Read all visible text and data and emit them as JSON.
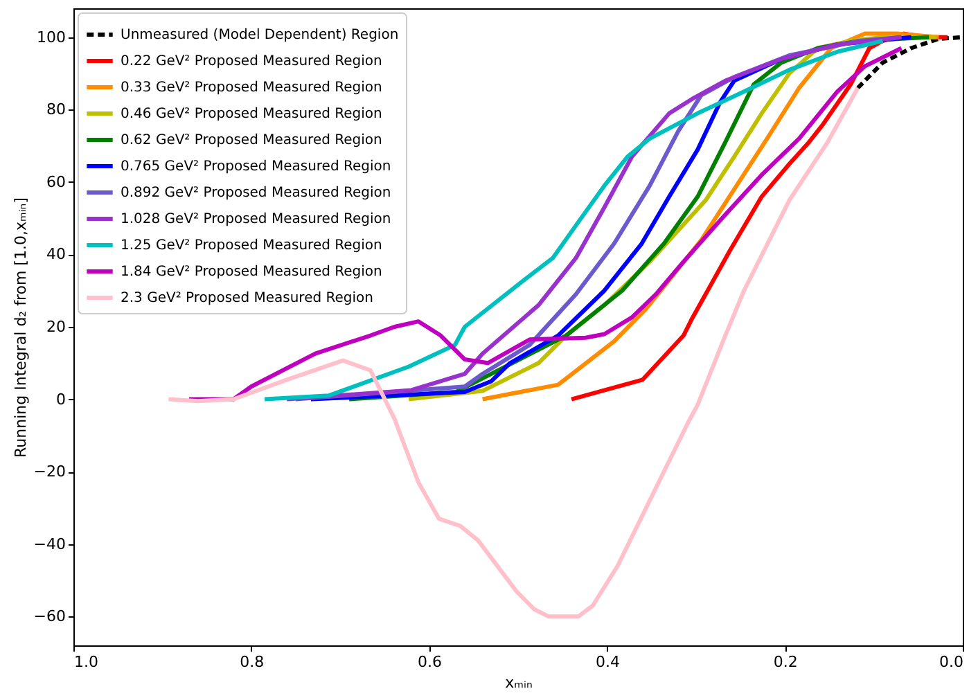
{
  "chart_data": {
    "type": "line",
    "xlabel": "xₘᵢₙ",
    "ylabel": "Running Integral d₂ from [1.0,xₘᵢₙ]",
    "xlim": [
      1.0,
      0.0
    ],
    "xticks": [
      {
        "value": 1,
        "label": "1.0"
      },
      0.8,
      0.6,
      0.4,
      0.2,
      {
        "value": 0,
        "label": "0.0"
      }
    ],
    "ylim": [
      -68,
      108
    ],
    "yticks": [
      -60,
      -40,
      -20,
      0,
      20,
      40,
      60,
      80,
      100
    ],
    "grid": false,
    "legend": "top left",
    "marker": "none",
    "series": [
      {
        "name": "Unmeasured (Model Dependent) Region",
        "color": "#000000",
        "line_style": "dashed",
        "x": [
          0.118,
          0.09,
          0.058,
          0.027,
          0.0
        ],
        "values": [
          86,
          93,
          97,
          99.6,
          100
        ]
      },
      {
        "name": "0.22 GeV² Proposed Measured Region",
        "color": "#ff0000",
        "x": [
          0.44,
          0.36,
          0.314,
          0.305,
          0.262,
          0.226,
          0.195,
          0.173,
          0.157,
          0.126,
          0.105,
          0.09,
          0.066,
          0.04,
          0.017
        ],
        "values": [
          0,
          5.4,
          17.6,
          22,
          41,
          56,
          65,
          71,
          76,
          87,
          97,
          99,
          101,
          100,
          100
        ]
      },
      {
        "name": "0.33 GeV² Proposed Measured Region",
        "color": "#ff8c00",
        "x": [
          0.54,
          0.455,
          0.392,
          0.356,
          0.294,
          0.257,
          0.22,
          0.184,
          0.148,
          0.11,
          0.074,
          0.027
        ],
        "values": [
          0,
          4,
          16,
          25,
          44,
          58,
          72,
          86,
          97,
          101,
          101,
          100
        ]
      },
      {
        "name": "0.46 GeV² Proposed Measured Region",
        "color": "#bfbf00",
        "x": [
          0.623,
          0.54,
          0.477,
          0.446,
          0.403,
          0.352,
          0.289,
          0.257,
          0.226,
          0.195,
          0.163,
          0.126,
          0.09,
          0.03
        ],
        "values": [
          0,
          2.3,
          10,
          17.6,
          26,
          38,
          55,
          67,
          79,
          90,
          97,
          99,
          100,
          100
        ]
      },
      {
        "name": "0.62 GeV² Proposed Measured Region",
        "color": "#008000",
        "x": [
          0.69,
          0.57,
          0.446,
          0.383,
          0.336,
          0.298,
          0.267,
          0.235,
          0.204,
          0.163,
          0.116,
          0.038
        ],
        "values": [
          0,
          2,
          17.6,
          30,
          43,
          56,
          71,
          87,
          93,
          97,
          99,
          100
        ]
      },
      {
        "name": "0.765 GeV² Proposed Measured Region",
        "color": "#0000ff",
        "x": [
          0.733,
          0.56,
          0.53,
          0.509,
          0.455,
          0.403,
          0.361,
          0.33,
          0.298,
          0.273,
          0.257,
          0.204,
          0.141,
          0.058
        ],
        "values": [
          0,
          2,
          5,
          10,
          17.6,
          30,
          43,
          56,
          69,
          82,
          88,
          94,
          98,
          100
        ]
      },
      {
        "name": "0.892 GeV² Proposed Measured Region",
        "color": "#6a5acd",
        "x": [
          0.75,
          0.56,
          0.54,
          0.487,
          0.435,
          0.392,
          0.352,
          0.32,
          0.294,
          0.257,
          0.195,
          0.116,
          0.069
        ],
        "values": [
          0,
          3.5,
          7,
          15,
          29,
          43,
          59,
          74,
          84,
          89,
          95,
          99,
          100
        ]
      },
      {
        "name": "1.028 GeV² Proposed Measured Region",
        "color": "#9932cc",
        "x": [
          0.76,
          0.62,
          0.56,
          0.54,
          0.477,
          0.435,
          0.403,
          0.372,
          0.33,
          0.304,
          0.267,
          0.204,
          0.141,
          0.069
        ],
        "values": [
          0,
          2.5,
          7,
          12.6,
          26,
          39,
          53,
          67,
          79,
          83,
          88,
          94,
          98,
          100
        ]
      },
      {
        "name": "1.25 GeV² Proposed Measured Region",
        "color": "#00bfbf",
        "x": [
          0.785,
          0.713,
          0.623,
          0.571,
          0.56,
          0.493,
          0.461,
          0.435,
          0.403,
          0.377,
          0.352,
          0.298,
          0.246,
          0.195,
          0.141,
          0.09
        ],
        "values": [
          0,
          1,
          9,
          15,
          20,
          33,
          39,
          48,
          59,
          67,
          72,
          79,
          85,
          91,
          96,
          99
        ]
      },
      {
        "name": "1.84 GeV² Proposed Measured Region",
        "color": "#bf00bf",
        "x": [
          0.87,
          0.82,
          0.8,
          0.728,
          0.666,
          0.639,
          0.612,
          0.587,
          0.56,
          0.534,
          0.487,
          0.424,
          0.403,
          0.372,
          0.345,
          0.314,
          0.267,
          0.226,
          0.184,
          0.141,
          0.11,
          0.069
        ],
        "values": [
          0,
          0,
          3.5,
          12.6,
          17.6,
          20,
          21.5,
          17.6,
          11,
          10,
          16.5,
          17,
          18,
          22.6,
          29,
          38,
          51,
          62,
          72,
          85,
          92,
          97
        ]
      },
      {
        "name": "2.3 GeV² Proposed Measured Region",
        "color": "#ffc0cb",
        "x": [
          0.893,
          0.86,
          0.82,
          0.76,
          0.697,
          0.666,
          0.639,
          0.612,
          0.589,
          0.565,
          0.545,
          0.502,
          0.482,
          0.466,
          0.432,
          0.416,
          0.388,
          0.352,
          0.309,
          0.298,
          0.267,
          0.246,
          0.195,
          0.152,
          0.118
        ],
        "values": [
          0,
          -0.5,
          0,
          5.4,
          10.7,
          8,
          -5.4,
          -23,
          -33,
          -35,
          -39,
          -53,
          -58,
          -60,
          -60,
          -57,
          -46,
          -28,
          -6.5,
          -1.5,
          17.6,
          30,
          55,
          71,
          86
        ]
      }
    ]
  }
}
